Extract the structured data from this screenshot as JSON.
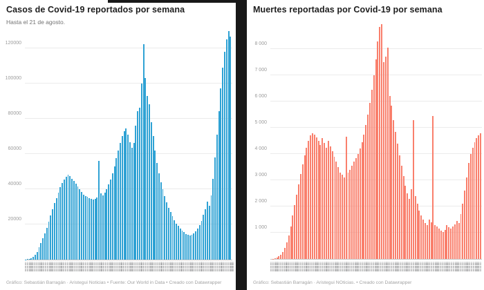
{
  "chart_data": [
    {
      "type": "bar",
      "title": "Casos de Covid-19 reportados por semana",
      "subtitle": "Hasta el 21 de agosto.",
      "footer": "Gráfico: Sebastián Barragán · Aristegui Noticias • Fuente: Our World in Data • Creado con Datawrapper",
      "xlabel": "",
      "ylabel": "",
      "x_description": "weekly date labels, rotated vertically (too small to read)",
      "ylim": [
        0,
        130000
      ],
      "grid": true,
      "y_ticks": [
        20000,
        40000,
        60000,
        80000,
        100000,
        120000
      ],
      "y_tick_labels": [
        "20000",
        "40000",
        "60000",
        "80000",
        "100000",
        "120000"
      ],
      "bar_color": "#2fa2d4",
      "values": [
        100,
        250,
        500,
        900,
        1600,
        2800,
        4500,
        7000,
        9500,
        12000,
        15000,
        18000,
        21500,
        25000,
        28500,
        32000,
        35000,
        38000,
        41000,
        43500,
        45500,
        47000,
        48000,
        47500,
        46000,
        44500,
        43000,
        41500,
        40000,
        38500,
        37000,
        36000,
        35500,
        35000,
        34500,
        34000,
        34500,
        35200,
        56000,
        37500,
        36500,
        38000,
        40000,
        42500,
        45500,
        49000,
        53000,
        57500,
        62000,
        66000,
        70000,
        73000,
        74500,
        71000,
        66500,
        63500,
        66000,
        76000,
        84000,
        86000,
        100000,
        122000,
        103000,
        93000,
        88000,
        78000,
        70000,
        62000,
        55000,
        49000,
        44000,
        40000,
        36000,
        32500,
        29500,
        27000,
        24500,
        22500,
        20500,
        19000,
        17500,
        16500,
        15500,
        14500,
        14000,
        13800,
        14200,
        15000,
        16000,
        17500,
        19500,
        22000,
        25500,
        28500,
        33000,
        30500,
        36500,
        46000,
        58000,
        71000,
        84000,
        97000,
        109000,
        118000,
        125000,
        129500,
        126500
      ]
    },
    {
      "type": "bar",
      "title": "Muertes reportadas por Covid-19 por semana",
      "subtitle": "",
      "footer": "Gráfico: Sebastián Barragán · Aristegui NOticias. • Creado con Datawrapper",
      "xlabel": "",
      "ylabel": "",
      "x_description": "weekly date labels, rotated vertically (too small to read)",
      "ylim": [
        0,
        9000
      ],
      "grid": true,
      "y_ticks": [
        1000,
        2000,
        3000,
        4000,
        5000,
        6000,
        7000,
        8000
      ],
      "y_tick_labels": [
        "1 000",
        "2 000",
        "3 000",
        "4 000",
        "5 000",
        "6 000",
        "7 000",
        "8 000"
      ],
      "bar_color": "#f97f6c",
      "values": [
        2,
        6,
        18,
        45,
        100,
        170,
        260,
        420,
        620,
        900,
        1250,
        1650,
        2050,
        2450,
        2850,
        3250,
        3600,
        3950,
        4250,
        4500,
        4700,
        4800,
        4750,
        4620,
        4500,
        4350,
        4600,
        4420,
        4250,
        4500,
        4300,
        4100,
        3900,
        3700,
        3500,
        3300,
        3200,
        3100,
        4650,
        3300,
        3400,
        3550,
        3700,
        3850,
        4000,
        4200,
        4450,
        4750,
        5100,
        5500,
        5950,
        6450,
        7000,
        7600,
        8300,
        8850,
        8950,
        7500,
        7700,
        8050,
        6200,
        5850,
        5300,
        4850,
        4400,
        3950,
        3550,
        3150,
        2800,
        2500,
        2300,
        2650,
        5300,
        2400,
        2100,
        1850,
        1650,
        1500,
        1380,
        1280,
        1500,
        1400,
        5450,
        1300,
        1250,
        1150,
        1080,
        1020,
        1100,
        1280,
        1200,
        1150,
        1250,
        1320,
        1450,
        1380,
        1700,
        2100,
        2600,
        3100,
        3650,
        4000,
        4250,
        4450,
        4600,
        4700,
        4800
      ]
    }
  ]
}
